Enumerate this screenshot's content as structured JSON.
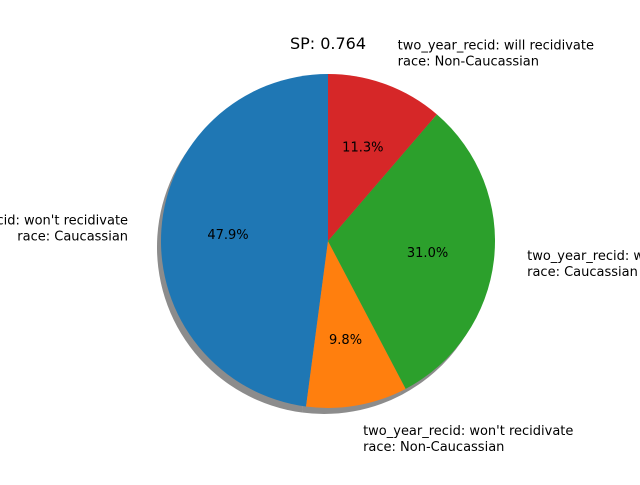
{
  "chart_data": {
    "type": "pie",
    "title": "SP: 0.764",
    "slices": [
      {
        "label_line1": "two_year_recid: won't recidivate",
        "label_line2": "race: Caucassian",
        "value": 47.9,
        "pct_label": "47.9%",
        "color": "#1f77b4"
      },
      {
        "label_line1": "two_year_recid: won't recidivate",
        "label_line2": "race: Non-Caucassian",
        "value": 9.8,
        "pct_label": "9.8%",
        "color": "#ff7f0e"
      },
      {
        "label_line1": "two_year_recid: will recidivate",
        "label_line2": "race: Caucassian",
        "value": 31.0,
        "pct_label": "31.0%",
        "color": "#2ca02c"
      },
      {
        "label_line1": "two_year_recid: will recidivate",
        "label_line2": "race: Non-Caucassian",
        "value": 11.3,
        "pct_label": "11.3%",
        "color": "#d62728"
      }
    ],
    "start_angle_deg": 90,
    "direction": "counterclockwise",
    "shadow": true,
    "legend": "none"
  }
}
